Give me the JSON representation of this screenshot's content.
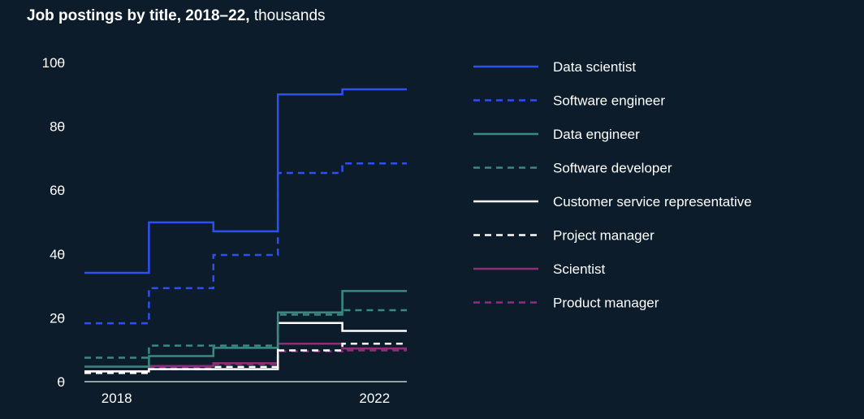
{
  "chart_data": {
    "type": "line",
    "style": "step",
    "title": "Job postings by title, 2018–22,",
    "subtitle": "thousands",
    "x": [
      2018,
      2019,
      2020,
      2021,
      2022
    ],
    "x_tick_labels": [
      "2018",
      "2022"
    ],
    "y_ticks": [
      0,
      20,
      40,
      60,
      80,
      100
    ],
    "y_tick_labels": [
      "0",
      "20",
      "40",
      "60",
      "80",
      "100"
    ],
    "ylim": [
      0,
      100
    ],
    "xlabel": "",
    "ylabel": "",
    "grid": false,
    "legend_position": "right",
    "series": [
      {
        "name": "Data scientist",
        "color": "#2e4ff2",
        "dash": false,
        "values": [
          34.1,
          49.9,
          47.1,
          90.0,
          91.6
        ]
      },
      {
        "name": "Software engineer",
        "color": "#2e4ff2",
        "dash": true,
        "values": [
          18.3,
          29.3,
          39.7,
          65.4,
          68.4
        ]
      },
      {
        "name": "Data engineer",
        "color": "#3b8a81",
        "dash": false,
        "values": [
          4.7,
          8.0,
          10.6,
          21.7,
          28.4
        ]
      },
      {
        "name": "Software developer",
        "color": "#3b8a81",
        "dash": true,
        "values": [
          7.5,
          11.3,
          11.3,
          21.0,
          22.4
        ]
      },
      {
        "name": "Customer service representative",
        "color": "#ffffff",
        "dash": false,
        "values": [
          3.2,
          3.9,
          3.9,
          18.4,
          15.9
        ]
      },
      {
        "name": "Project manager",
        "color": "#ffffff",
        "dash": true,
        "values": [
          2.7,
          3.9,
          4.6,
          9.8,
          11.9
        ]
      },
      {
        "name": "Scientist",
        "color": "#8e2f7a",
        "dash": false,
        "values": [
          3.2,
          4.9,
          5.8,
          11.9,
          10.4
        ]
      },
      {
        "name": "Product manager",
        "color": "#8e2f7a",
        "dash": true,
        "values": [
          3.0,
          4.5,
          5.5,
          9.5,
          9.8
        ]
      }
    ]
  }
}
